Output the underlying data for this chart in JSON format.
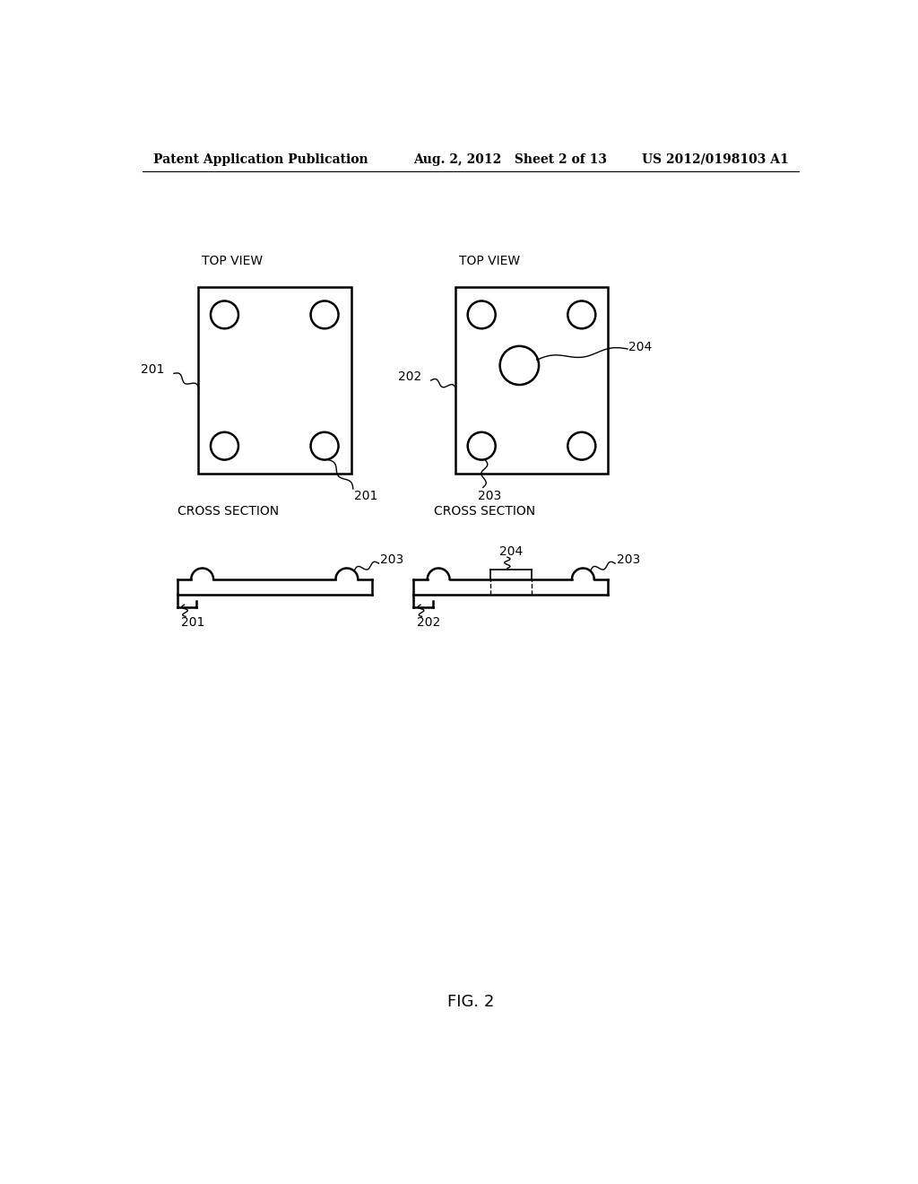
{
  "background_color": "#ffffff",
  "header_left": "Patent Application Publication",
  "header_center": "Aug. 2, 2012   Sheet 2 of 13",
  "header_right": "US 2012/0198103 A1",
  "fig_label": "FIG. 2",
  "line_color": "#000000",
  "line_width": 1.8,
  "label_fontsize": 10,
  "header_fontsize": 10
}
